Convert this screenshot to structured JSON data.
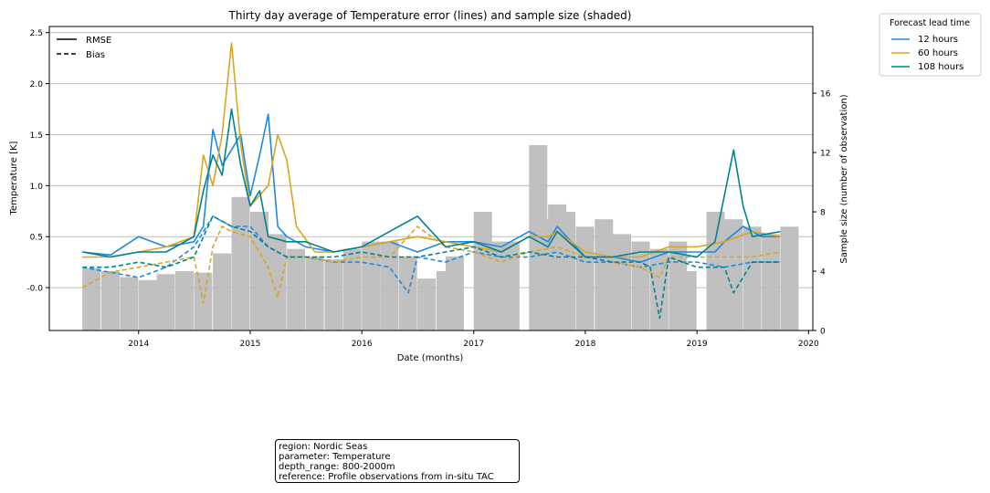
{
  "chart_data": {
    "type": "line",
    "title": "Thirty day average of Temperature error (lines) and sample size (shaded)",
    "xlabel": "Date (months)",
    "ylabel": "Temperature [K]",
    "y2label": "Sample size (number of observation)",
    "xlim": [
      "2013-03-15",
      "2020-01-15"
    ],
    "ylim": [
      -0.42,
      2.56
    ],
    "y2lim": [
      0,
      20.5
    ],
    "x_ticks": [
      "2014",
      "2015",
      "2016",
      "2017",
      "2018",
      "2019",
      "2020"
    ],
    "y_ticks": [
      "-0.0",
      "0.5",
      "1.0",
      "1.5",
      "2.0",
      "2.5"
    ],
    "y2_ticks": [
      "0",
      "4",
      "8",
      "12",
      "16"
    ],
    "grid": "horizontal",
    "style_legend": {
      "placement": "top-left",
      "entries": [
        {
          "label": "RMSE",
          "style": "solid"
        },
        {
          "label": "Bias",
          "style": "dashed"
        }
      ]
    },
    "series_legend": {
      "title": "Forecast lead time",
      "placement": "outside-top-right",
      "entries": [
        {
          "label": "12 hours",
          "color": "#1e88e5"
        },
        {
          "label": "60 hours",
          "color": "#daa520"
        },
        {
          "label": "108 hours",
          "color": "#00838f"
        }
      ]
    },
    "sample_size": {
      "color": "#c0c0c0",
      "dates": [
        "2013-07",
        "2013-09",
        "2013-11",
        "2014-01",
        "2014-03",
        "2014-05",
        "2014-07",
        "2014-09",
        "2014-11",
        "2015-01",
        "2015-03",
        "2015-05",
        "2015-07",
        "2015-09",
        "2015-11",
        "2016-01",
        "2016-03",
        "2016-05",
        "2016-07",
        "2016-09",
        "2016-10",
        "2017-01",
        "2017-03",
        "2017-04",
        "2017-07",
        "2017-08",
        "2017-09",
        "2017-10",
        "2017-12",
        "2018-02",
        "2018-04",
        "2018-06",
        "2018-08",
        "2018-10",
        "2018-11",
        "2019-02",
        "2019-04",
        "2019-06",
        "2019-08",
        "2019-10"
      ],
      "values": [
        4.2,
        4.0,
        3.6,
        3.4,
        3.8,
        4.0,
        3.9,
        5.2,
        9.0,
        8.0,
        6.5,
        5.5,
        5.0,
        4.8,
        5.5,
        6.0,
        6.0,
        5.0,
        3.5,
        4.0,
        5.0,
        8.0,
        6.0,
        6.0,
        12.5,
        7.5,
        8.5,
        8.0,
        7.0,
        7.5,
        6.5,
        6.0,
        5.5,
        6.0,
        4.0,
        8.0,
        7.5,
        7.0,
        6.5,
        7.0
      ]
    },
    "series": [
      {
        "name": "12 hours",
        "color": "#1e88e5",
        "rmse": {
          "dates": [
            "2013-07",
            "2013-10",
            "2014-01",
            "2014-04",
            "2014-07",
            "2014-08",
            "2014-09",
            "2014-10",
            "2014-11",
            "2014-12",
            "2015-01",
            "2015-02",
            "2015-03",
            "2015-04",
            "2015-05",
            "2015-07",
            "2015-10",
            "2016-01",
            "2016-04",
            "2016-07",
            "2016-10",
            "2017-01",
            "2017-04",
            "2017-07",
            "2017-09",
            "2017-10",
            "2018-01",
            "2018-04",
            "2018-07",
            "2018-10",
            "2019-01",
            "2019-03",
            "2019-04",
            "2019-06",
            "2019-08",
            "2019-10"
          ],
          "values": [
            0.35,
            0.32,
            0.5,
            0.4,
            0.45,
            0.6,
            1.55,
            1.2,
            1.35,
            1.5,
            0.9,
            1.3,
            1.7,
            0.6,
            0.5,
            0.4,
            0.35,
            0.4,
            0.45,
            0.35,
            0.45,
            0.45,
            0.4,
            0.55,
            0.45,
            0.6,
            0.3,
            0.3,
            0.25,
            0.35,
            0.35,
            0.35,
            0.45,
            0.6,
            0.5,
            0.5
          ]
        },
        "bias": {
          "dates": [
            "2013-07",
            "2013-10",
            "2014-01",
            "2014-04",
            "2014-07",
            "2014-09",
            "2014-11",
            "2015-01",
            "2015-03",
            "2015-05",
            "2015-07",
            "2015-10",
            "2016-01",
            "2016-04",
            "2016-06",
            "2016-07",
            "2016-10",
            "2017-01",
            "2017-04",
            "2017-07",
            "2017-10",
            "2018-01",
            "2018-04",
            "2018-07",
            "2018-10",
            "2019-01",
            "2019-04",
            "2019-07",
            "2019-10"
          ],
          "values": [
            0.2,
            0.15,
            0.1,
            0.2,
            0.4,
            0.7,
            0.6,
            0.6,
            0.4,
            0.3,
            0.3,
            0.25,
            0.25,
            0.2,
            -0.05,
            0.3,
            0.25,
            0.35,
            0.3,
            0.3,
            0.35,
            0.25,
            0.25,
            0.2,
            0.25,
            0.25,
            0.2,
            0.25,
            0.25
          ]
        }
      },
      {
        "name": "60 hours",
        "color": "#daa520",
        "rmse": {
          "dates": [
            "2013-07",
            "2013-10",
            "2014-01",
            "2014-04",
            "2014-07",
            "2014-08",
            "2014-09",
            "2014-10",
            "2014-11",
            "2014-12",
            "2015-01",
            "2015-03",
            "2015-04",
            "2015-05",
            "2015-06",
            "2015-08",
            "2015-10",
            "2016-01",
            "2016-04",
            "2016-07",
            "2016-10",
            "2017-01",
            "2017-04",
            "2017-07",
            "2017-09",
            "2017-10",
            "2018-01",
            "2018-04",
            "2018-07",
            "2018-10",
            "2019-01",
            "2019-04",
            "2019-07",
            "2019-10"
          ],
          "values": [
            0.3,
            0.3,
            0.35,
            0.4,
            0.5,
            1.3,
            1.0,
            1.5,
            2.4,
            1.4,
            0.8,
            1.0,
            1.5,
            1.25,
            0.6,
            0.35,
            0.35,
            0.4,
            0.45,
            0.5,
            0.45,
            0.4,
            0.35,
            0.5,
            0.5,
            0.55,
            0.35,
            0.3,
            0.3,
            0.4,
            0.4,
            0.45,
            0.55,
            0.5
          ]
        },
        "bias": {
          "dates": [
            "2013-07",
            "2013-10",
            "2014-01",
            "2014-04",
            "2014-07",
            "2014-08",
            "2014-09",
            "2014-10",
            "2014-11",
            "2015-01",
            "2015-03",
            "2015-04",
            "2015-05",
            "2015-07",
            "2015-10",
            "2016-01",
            "2016-04",
            "2016-07",
            "2016-10",
            "2017-01",
            "2017-04",
            "2017-07",
            "2017-10",
            "2018-01",
            "2018-04",
            "2018-07",
            "2018-09",
            "2018-10",
            "2019-01",
            "2019-04",
            "2019-07",
            "2019-10"
          ],
          "values": [
            0.0,
            0.15,
            0.2,
            0.25,
            0.3,
            -0.15,
            0.4,
            0.6,
            0.55,
            0.5,
            0.2,
            -0.1,
            0.3,
            0.3,
            0.25,
            0.3,
            0.3,
            0.6,
            0.4,
            0.35,
            0.25,
            0.35,
            0.4,
            0.3,
            0.25,
            0.2,
            0.1,
            0.3,
            0.3,
            0.3,
            0.3,
            0.35
          ]
        }
      },
      {
        "name": "108 hours",
        "color": "#00838f",
        "rmse": {
          "dates": [
            "2013-07",
            "2013-10",
            "2014-01",
            "2014-04",
            "2014-07",
            "2014-08",
            "2014-09",
            "2014-10",
            "2014-11",
            "2014-12",
            "2015-01",
            "2015-02",
            "2015-03",
            "2015-05",
            "2015-07",
            "2015-10",
            "2016-01",
            "2016-04",
            "2016-07",
            "2016-10",
            "2017-01",
            "2017-04",
            "2017-07",
            "2017-09",
            "2017-10",
            "2018-01",
            "2018-04",
            "2018-07",
            "2018-10",
            "2019-01",
            "2019-03",
            "2019-05",
            "2019-06",
            "2019-07",
            "2019-10"
          ],
          "values": [
            0.35,
            0.3,
            0.35,
            0.35,
            0.5,
            0.95,
            1.3,
            1.1,
            1.75,
            1.2,
            0.8,
            0.95,
            0.5,
            0.45,
            0.45,
            0.35,
            0.4,
            0.55,
            0.7,
            0.4,
            0.45,
            0.35,
            0.5,
            0.4,
            0.55,
            0.3,
            0.3,
            0.35,
            0.35,
            0.3,
            0.45,
            1.35,
            0.8,
            0.5,
            0.55
          ]
        },
        "bias": {
          "dates": [
            "2013-07",
            "2013-10",
            "2014-01",
            "2014-04",
            "2014-07",
            "2014-09",
            "2014-11",
            "2015-01",
            "2015-03",
            "2015-05",
            "2015-07",
            "2015-10",
            "2016-01",
            "2016-04",
            "2016-07",
            "2016-10",
            "2017-01",
            "2017-04",
            "2017-07",
            "2017-10",
            "2018-01",
            "2018-04",
            "2018-07",
            "2018-08",
            "2018-09",
            "2018-10",
            "2019-01",
            "2019-04",
            "2019-05",
            "2019-07",
            "2019-10"
          ],
          "values": [
            0.2,
            0.2,
            0.25,
            0.2,
            0.3,
            0.7,
            0.6,
            0.55,
            0.4,
            0.3,
            0.3,
            0.3,
            0.35,
            0.3,
            0.3,
            0.35,
            0.4,
            0.3,
            0.35,
            0.3,
            0.3,
            0.25,
            0.25,
            0.2,
            -0.3,
            0.3,
            0.2,
            0.2,
            -0.05,
            0.25,
            0.25
          ]
        }
      }
    ],
    "info": [
      "region: Nordic Seas",
      "parameter: Temperature",
      "depth_range: 800-2000m",
      "reference: Profile observations from in-situ TAC"
    ]
  }
}
